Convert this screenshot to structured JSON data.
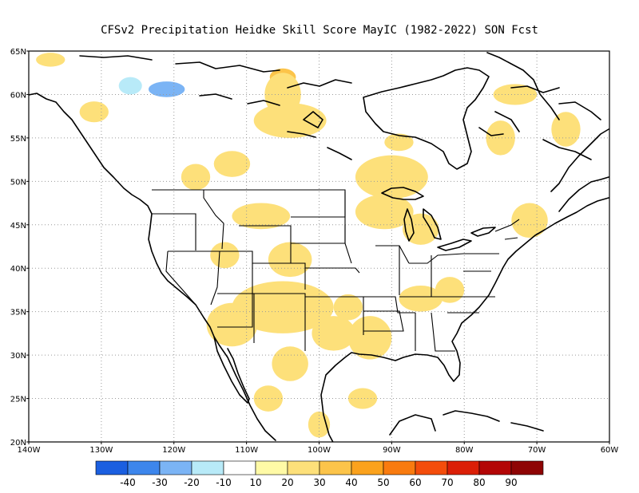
{
  "title": "CFSv2  Precipitation Heidke Skill Score MayIC (1982-2022) SON Fcst",
  "map": {
    "lon_range": [
      -140,
      -60
    ],
    "lat_range": [
      20,
      65
    ],
    "lat_ticks": [
      {
        "value": 65,
        "label": "65N"
      },
      {
        "value": 60,
        "label": "60N"
      },
      {
        "value": 55,
        "label": "55N"
      },
      {
        "value": 50,
        "label": "50N"
      },
      {
        "value": 45,
        "label": "45N"
      },
      {
        "value": 40,
        "label": "40N"
      },
      {
        "value": 35,
        "label": "35N"
      },
      {
        "value": 30,
        "label": "30N"
      },
      {
        "value": 25,
        "label": "25N"
      },
      {
        "value": 20,
        "label": "20N"
      }
    ],
    "lon_ticks": [
      {
        "value": -140,
        "label": "140W"
      },
      {
        "value": -130,
        "label": "130W"
      },
      {
        "value": -120,
        "label": "120W"
      },
      {
        "value": -110,
        "label": "110W"
      },
      {
        "value": -100,
        "label": "100W"
      },
      {
        "value": -90,
        "label": "90W"
      },
      {
        "value": -80,
        "label": "80W"
      },
      {
        "value": -70,
        "label": "70W"
      },
      {
        "value": -60,
        "label": "60W"
      }
    ],
    "grid": true,
    "colorbar": {
      "colors": [
        "#1b5fe0",
        "#3d86ec",
        "#7bb4f5",
        "#b8eaf8",
        "#ffffff",
        "#fffaa6",
        "#fde07a",
        "#fcc44a",
        "#fba21d",
        "#f97b0f",
        "#f44d0b",
        "#db1f07",
        "#b30606",
        "#8e0404"
      ],
      "labels": [
        "-40",
        "-30",
        "-20",
        "-10",
        "10",
        "20",
        "30",
        "40",
        "50",
        "60",
        "70",
        "80",
        "90"
      ]
    },
    "blobs": [
      {
        "lon": -126,
        "lat": 61,
        "rlon": 1.6,
        "rlat": 1.0,
        "v": -20
      },
      {
        "lon": -121,
        "lat": 60.6,
        "rlon": 2.5,
        "rlat": 0.9,
        "v": -30
      },
      {
        "lon": -131,
        "lat": 62.4,
        "rlon": 4,
        "rlat": 1.1,
        "v": -10
      },
      {
        "lon": -116,
        "lat": 58.5,
        "rlon": 1.2,
        "rlat": 1.6,
        "v": -10
      },
      {
        "lon": -112,
        "lat": 60.6,
        "rlon": 1.2,
        "rlat": 0.9,
        "v": -10
      },
      {
        "lon": -107,
        "lat": 62.8,
        "rlon": 1.5,
        "rlat": 1.0,
        "v": -10
      },
      {
        "lon": -94,
        "lat": 56.0,
        "rlon": 1.4,
        "rlat": 1.0,
        "v": -10
      },
      {
        "lon": -86,
        "lat": 53.5,
        "rlon": 1.0,
        "rlat": 1.0,
        "v": -10
      },
      {
        "lon": -76,
        "lat": 48.0,
        "rlon": 2.0,
        "rlat": 1.0,
        "v": -10
      },
      {
        "lon": -69,
        "lat": 49.2,
        "rlon": 1.5,
        "rlat": 0.9,
        "v": -10
      },
      {
        "lon": -63,
        "lat": 54.0,
        "rlon": 1.2,
        "rlat": 1.0,
        "v": -10
      },
      {
        "lon": -118,
        "lat": 47.6,
        "rlon": 1.2,
        "rlat": 0.8,
        "v": -10
      },
      {
        "lon": -121.5,
        "lat": 41.3,
        "rlon": 0.8,
        "rlat": 1.3,
        "v": -10
      },
      {
        "lon": -123,
        "lat": 53.5,
        "rlon": 2.0,
        "rlat": 1.0,
        "v": -10
      },
      {
        "lon": -106,
        "lat": 48.8,
        "rlon": 1.5,
        "rlat": 0.8,
        "v": -10
      },
      {
        "lon": -104,
        "lat": 26.8,
        "rlon": 1.2,
        "rlat": 1.0,
        "v": -10
      },
      {
        "lon": -101.5,
        "lat": 35.0,
        "rlon": 1.3,
        "rlat": 0.9,
        "v": 30
      },
      {
        "lon": -107.5,
        "lat": 35.3,
        "rlon": 1.3,
        "rlat": 0.9,
        "v": 30
      },
      {
        "lon": -89,
        "lat": 51.5,
        "rlon": 2.2,
        "rlat": 1.2,
        "v": 30
      },
      {
        "lon": -105,
        "lat": 62.0,
        "rlon": 1.8,
        "rlat": 1.0,
        "v": 30
      },
      {
        "lon": -113,
        "lat": 34.5,
        "rlon": 1.5,
        "rlat": 1.1,
        "v": 30
      },
      {
        "lon": -105,
        "lat": 35.5,
        "rlon": 7,
        "rlat": 3.0,
        "v": 20
      },
      {
        "lon": -112,
        "lat": 33.5,
        "rlon": 3.5,
        "rlat": 2.5,
        "v": 20
      },
      {
        "lon": -98,
        "lat": 32.5,
        "rlon": 3.0,
        "rlat": 2.0,
        "v": 20
      },
      {
        "lon": -93,
        "lat": 32.0,
        "rlon": 3.0,
        "rlat": 2.5,
        "v": 20
      },
      {
        "lon": -86,
        "lat": 36.5,
        "rlon": 3.0,
        "rlat": 1.5,
        "v": 20
      },
      {
        "lon": -86,
        "lat": 44.5,
        "rlon": 2.5,
        "rlat": 1.8,
        "v": 20
      },
      {
        "lon": -91,
        "lat": 46.5,
        "rlon": 4.0,
        "rlat": 2.0,
        "v": 20
      },
      {
        "lon": -90,
        "lat": 50.5,
        "rlon": 5.0,
        "rlat": 2.5,
        "v": 20
      },
      {
        "lon": -104,
        "lat": 57.0,
        "rlon": 5.0,
        "rlat": 2.0,
        "v": 20
      },
      {
        "lon": -112,
        "lat": 52.0,
        "rlon": 2.5,
        "rlat": 1.5,
        "v": 20
      },
      {
        "lon": -108,
        "lat": 46.0,
        "rlon": 4.0,
        "rlat": 1.5,
        "v": 20
      },
      {
        "lon": -104,
        "lat": 41.0,
        "rlon": 3.0,
        "rlat": 2.0,
        "v": 20
      },
      {
        "lon": -113,
        "lat": 41.5,
        "rlon": 2.0,
        "rlat": 1.5,
        "v": 20
      },
      {
        "lon": -104,
        "lat": 29.0,
        "rlon": 2.5,
        "rlat": 2.0,
        "v": 20
      },
      {
        "lon": -100,
        "lat": 22.0,
        "rlon": 1.5,
        "rlat": 1.5,
        "v": 20
      },
      {
        "lon": -107,
        "lat": 25.0,
        "rlon": 2.0,
        "rlat": 1.5,
        "v": 20
      },
      {
        "lon": -94,
        "lat": 25.0,
        "rlon": 2.0,
        "rlat": 1.2,
        "v": 20
      },
      {
        "lon": -66,
        "lat": 56.0,
        "rlon": 2.0,
        "rlat": 2.0,
        "v": 20
      },
      {
        "lon": -73,
        "lat": 60.0,
        "rlon": 3.0,
        "rlat": 1.2,
        "v": 20
      },
      {
        "lon": -71,
        "lat": 45.5,
        "rlon": 2.5,
        "rlat": 2.0,
        "v": 20
      },
      {
        "lon": -82,
        "lat": 37.5,
        "rlon": 2.0,
        "rlat": 1.5,
        "v": 20
      },
      {
        "lon": -117,
        "lat": 50.5,
        "rlon": 2.0,
        "rlat": 1.5,
        "v": 20
      },
      {
        "lon": -105,
        "lat": 60.0,
        "rlon": 2.5,
        "rlat": 2.5,
        "v": 20
      },
      {
        "lon": -89,
        "lat": 54.5,
        "rlon": 2.0,
        "rlat": 1.0,
        "v": 20
      },
      {
        "lon": -75,
        "lat": 55.0,
        "rlon": 2.0,
        "rlat": 2.0,
        "v": 20
      },
      {
        "lon": -131,
        "lat": 58.0,
        "rlon": 2.0,
        "rlat": 1.2,
        "v": 20
      },
      {
        "lon": -137,
        "lat": 64.0,
        "rlon": 2.0,
        "rlat": 0.8,
        "v": 20
      },
      {
        "lon": -96,
        "lat": 35.5,
        "rlon": 2.0,
        "rlat": 1.5,
        "v": 20
      }
    ]
  }
}
